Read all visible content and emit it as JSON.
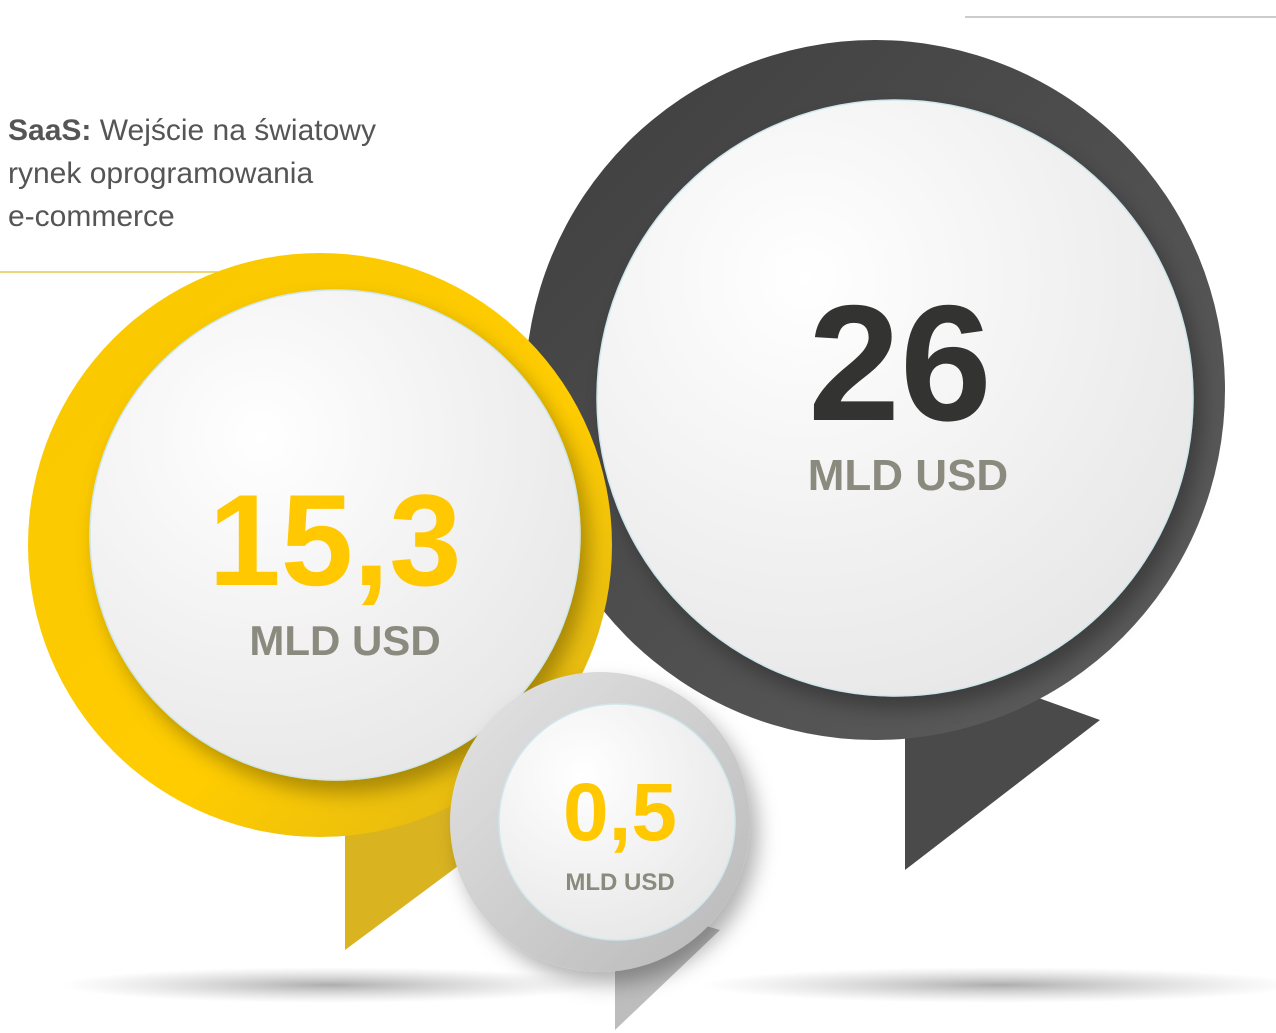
{
  "heading": {
    "lead": "SaaS:",
    "text": [
      "Wejście na światowy",
      "rynek oprogramowania",
      "e-commerce"
    ]
  },
  "bubbles": [
    {
      "value": "26",
      "unit": "MLD USD"
    },
    {
      "value": "15,3",
      "unit": "MLD USD"
    },
    {
      "value": "0,5",
      "unit": "MLD USD"
    }
  ]
}
